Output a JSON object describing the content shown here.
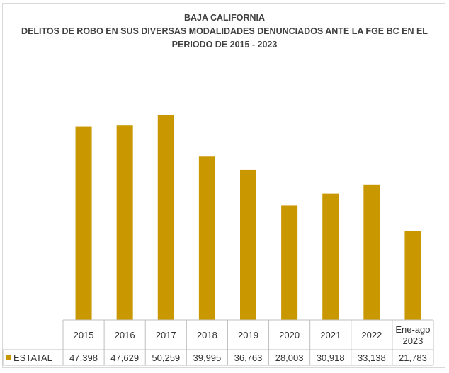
{
  "chart_data": {
    "type": "bar",
    "title": "BAJA CALIFORNIA",
    "subtitle_lines": [
      "DELITOS DE ROBO EN SUS DIVERSAS MODALIDADES DENUNCIADOS ANTE LA FGE BC EN EL",
      "PERIODO DE 2015 - 2023"
    ],
    "categories": [
      [
        "2015"
      ],
      [
        "2016"
      ],
      [
        "2017"
      ],
      [
        "2018"
      ],
      [
        "2019"
      ],
      [
        "2020"
      ],
      [
        "2021"
      ],
      [
        "2022"
      ],
      [
        "Ene-ago",
        "2023"
      ]
    ],
    "series": [
      {
        "name": "ESTATAL",
        "color": "#C99700",
        "values": [
          47398,
          47629,
          50259,
          39995,
          36763,
          28003,
          30918,
          33138,
          21783
        ],
        "labels": [
          "47,398",
          "47,629",
          "50,259",
          "39,995",
          "36,763",
          "28,003",
          "30,918",
          "33,138",
          "21,783"
        ]
      }
    ],
    "ylim": [
      0,
      52000
    ],
    "data_table": true,
    "grid": false
  }
}
